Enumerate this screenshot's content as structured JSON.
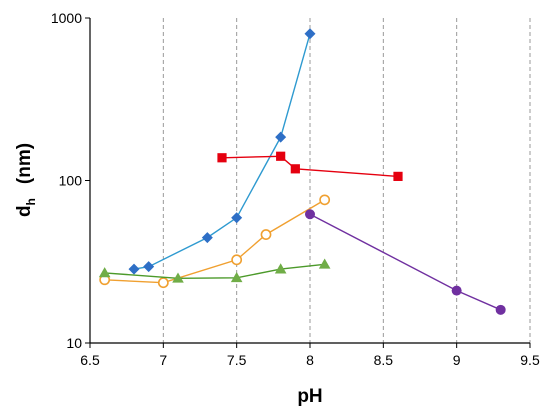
{
  "chart_data": {
    "type": "scatter",
    "xlabel": "pH",
    "ylabel_main": "d",
    "ylabel_sub": "h",
    "ylabel_unit": "(nm)",
    "xlim": [
      6.5,
      9.5
    ],
    "ylim": [
      10,
      1000
    ],
    "y_scale": "log",
    "x_ticks": [
      "6.5",
      "7",
      "7.5",
      "8",
      "8.5",
      "9",
      "9.5"
    ],
    "y_ticks": [
      "10",
      "100",
      "1000"
    ],
    "grid": "vertical-dashed",
    "series": [
      {
        "color": "#2E9AD0",
        "marker_color": "#2E6FC6",
        "marker": "diamond",
        "points": [
          [
            6.8,
            28.5
          ],
          [
            6.9,
            29.5
          ],
          [
            7.3,
            44.5
          ],
          [
            7.5,
            59
          ],
          [
            7.8,
            185
          ],
          [
            8.0,
            800
          ]
        ]
      },
      {
        "color": "#E5000F",
        "marker_color": "#E5000F",
        "marker": "square",
        "points": [
          [
            7.4,
            138
          ],
          [
            7.8,
            141
          ],
          [
            7.9,
            118
          ],
          [
            8.6,
            106
          ]
        ]
      },
      {
        "color": "#F0A030",
        "marker_color": "#F0A030",
        "marker": "circle-open",
        "points": [
          [
            6.6,
            24.5
          ],
          [
            7.0,
            23.5
          ],
          [
            7.5,
            32.5
          ],
          [
            7.7,
            46.5
          ],
          [
            8.1,
            76
          ]
        ]
      },
      {
        "color": "#4C9A2A",
        "marker_color": "#70AD47",
        "marker": "triangle",
        "points": [
          [
            6.6,
            27
          ],
          [
            7.1,
            25
          ],
          [
            7.5,
            25.2
          ],
          [
            7.8,
            28.5
          ],
          [
            8.1,
            30.5
          ]
        ]
      },
      {
        "color": "#7030A0",
        "marker_color": "#7030A0",
        "marker": "circle",
        "points": [
          [
            8.0,
            62
          ],
          [
            9.0,
            21
          ],
          [
            9.3,
            16
          ]
        ]
      }
    ]
  }
}
